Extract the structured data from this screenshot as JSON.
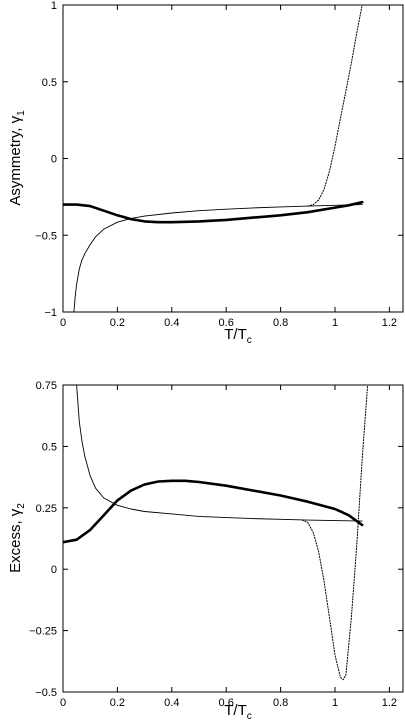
{
  "chart_data": [
    {
      "type": "line",
      "xlabel": "T/T",
      "xlabel_sub": "c",
      "ylabel": "Asymmetry, γ",
      "ylabel_sub": "1",
      "xlim": [
        0,
        1.25
      ],
      "ylim": [
        -1,
        1
      ],
      "x_ticks": [
        0,
        0.2,
        0.4,
        0.6,
        0.8,
        1,
        1.2
      ],
      "x_tick_labels": [
        "0",
        "0.2",
        "0.4",
        "0.6",
        "0.8",
        "1",
        "1.2"
      ],
      "y_ticks": [
        -1,
        -0.5,
        0,
        0.5,
        1
      ],
      "y_tick_labels": [
        "−1",
        "−0.5",
        "0",
        "0.5",
        "1"
      ],
      "grid": false,
      "series": [
        {
          "style": "thick",
          "x": [
            0.0,
            0.05,
            0.1,
            0.15,
            0.2,
            0.25,
            0.3,
            0.35,
            0.4,
            0.5,
            0.6,
            0.7,
            0.8,
            0.9,
            1.0,
            1.05,
            1.1
          ],
          "y": [
            -0.3,
            -0.3,
            -0.31,
            -0.34,
            -0.37,
            -0.395,
            -0.41,
            -0.415,
            -0.415,
            -0.41,
            -0.4,
            -0.385,
            -0.37,
            -0.35,
            -0.32,
            -0.305,
            -0.285
          ]
        },
        {
          "style": "thin",
          "x": [
            0.04,
            0.045,
            0.05,
            0.06,
            0.07,
            0.08,
            0.1,
            0.12,
            0.15,
            0.2,
            0.25,
            0.3,
            0.4,
            0.5,
            0.6,
            0.7,
            0.8,
            0.9,
            1.0,
            1.05,
            1.1
          ],
          "y": [
            -1.0,
            -0.9,
            -0.82,
            -0.72,
            -0.66,
            -0.62,
            -0.56,
            -0.51,
            -0.46,
            -0.415,
            -0.39,
            -0.375,
            -0.355,
            -0.34,
            -0.33,
            -0.322,
            -0.315,
            -0.31,
            -0.305,
            -0.302,
            -0.3
          ]
        },
        {
          "style": "dotted",
          "x": [
            0.9,
            0.92,
            0.94,
            0.96,
            0.98,
            1.0,
            1.02,
            1.04,
            1.06,
            1.08,
            1.1
          ],
          "y": [
            -0.31,
            -0.3,
            -0.27,
            -0.2,
            -0.08,
            0.08,
            0.26,
            0.44,
            0.62,
            0.82,
            1.0
          ]
        }
      ]
    },
    {
      "type": "line",
      "xlabel": "T/T",
      "xlabel_sub": "c",
      "ylabel": "Excess, γ",
      "ylabel_sub": "2",
      "xlim": [
        0,
        1.25
      ],
      "ylim": [
        -0.5,
        0.75
      ],
      "x_ticks": [
        0,
        0.2,
        0.4,
        0.6,
        0.8,
        1,
        1.2
      ],
      "x_tick_labels": [
        "0",
        "0.2",
        "0.4",
        "0.6",
        "0.8",
        "1",
        "1.2"
      ],
      "y_ticks": [
        -0.5,
        -0.25,
        0,
        0.25,
        0.5,
        0.75
      ],
      "y_tick_labels": [
        "−0.5",
        "−0.25",
        "0",
        "0.25",
        "0.5",
        "0.75"
      ],
      "grid": false,
      "series": [
        {
          "style": "thick",
          "x": [
            0.0,
            0.05,
            0.1,
            0.15,
            0.2,
            0.25,
            0.3,
            0.35,
            0.4,
            0.45,
            0.5,
            0.6,
            0.7,
            0.8,
            0.9,
            1.0,
            1.05,
            1.1
          ],
          "y": [
            0.11,
            0.12,
            0.16,
            0.22,
            0.28,
            0.32,
            0.345,
            0.357,
            0.36,
            0.36,
            0.355,
            0.34,
            0.32,
            0.3,
            0.275,
            0.245,
            0.22,
            0.18
          ]
        },
        {
          "style": "thin",
          "x": [
            0.05,
            0.06,
            0.07,
            0.08,
            0.1,
            0.12,
            0.15,
            0.2,
            0.25,
            0.3,
            0.4,
            0.5,
            0.6,
            0.7,
            0.8,
            0.9,
            1.0,
            1.1
          ],
          "y": [
            0.75,
            0.6,
            0.52,
            0.46,
            0.38,
            0.33,
            0.29,
            0.26,
            0.245,
            0.235,
            0.225,
            0.215,
            0.21,
            0.206,
            0.203,
            0.2,
            0.198,
            0.196
          ]
        },
        {
          "style": "dotted",
          "x": [
            0.88,
            0.9,
            0.92,
            0.94,
            0.96,
            0.98,
            1.0,
            1.02,
            1.03,
            1.04,
            1.06,
            1.08,
            1.1,
            1.12
          ],
          "y": [
            0.2,
            0.19,
            0.15,
            0.07,
            -0.05,
            -0.2,
            -0.35,
            -0.44,
            -0.45,
            -0.43,
            -0.2,
            0.1,
            0.45,
            0.75
          ]
        }
      ]
    }
  ]
}
